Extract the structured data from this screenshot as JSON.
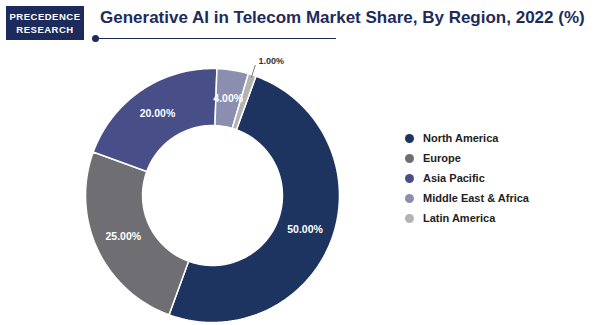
{
  "chart_data": {
    "type": "pie",
    "title": "Generative AI in Telecom Market Share, By Region, 2022 (%)",
    "logo_text": [
      "PRECEDENCE",
      "RESEARCH"
    ],
    "categories": [
      "North America",
      "Europe",
      "Asia Pacific",
      "Middle East & Africa",
      "Latin America"
    ],
    "values": [
      50,
      25,
      20,
      4,
      1
    ],
    "value_labels": [
      "50.00%",
      "25.00%",
      "20.00%",
      "4.00%",
      "1.00%"
    ],
    "colors": [
      "#1d3461",
      "#6f6f73",
      "#474e88",
      "#8a8fb0",
      "#b3b3b3"
    ],
    "data_labels": true,
    "legend": "right"
  }
}
